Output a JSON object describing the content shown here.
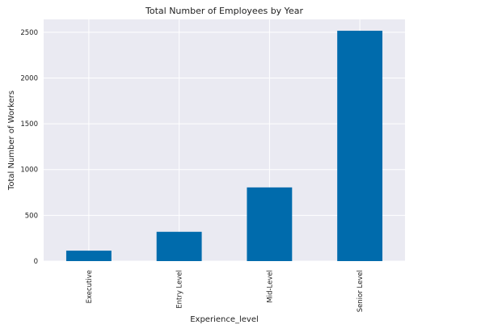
{
  "chart_data": {
    "type": "bar",
    "title": "Total Number of Employees by Year",
    "xlabel": "Experience_level",
    "ylabel": "Total Number of Workers",
    "categories": [
      "Executive",
      "Entry Level",
      "Mid-Level",
      "Senior Level"
    ],
    "values": [
      114,
      320,
      805,
      2516
    ],
    "ylim": [
      0,
      2640
    ],
    "yticks": [
      0,
      500,
      1000,
      1500,
      2000,
      2500
    ],
    "ytick_labels": [
      "0",
      "500",
      "1000",
      "1500",
      "2000",
      "2500"
    ],
    "grid": true,
    "legend": "none",
    "bar_color": "#006BAC",
    "plot_background": "#EAEAF2",
    "grid_color": "#FFFFFF"
  }
}
